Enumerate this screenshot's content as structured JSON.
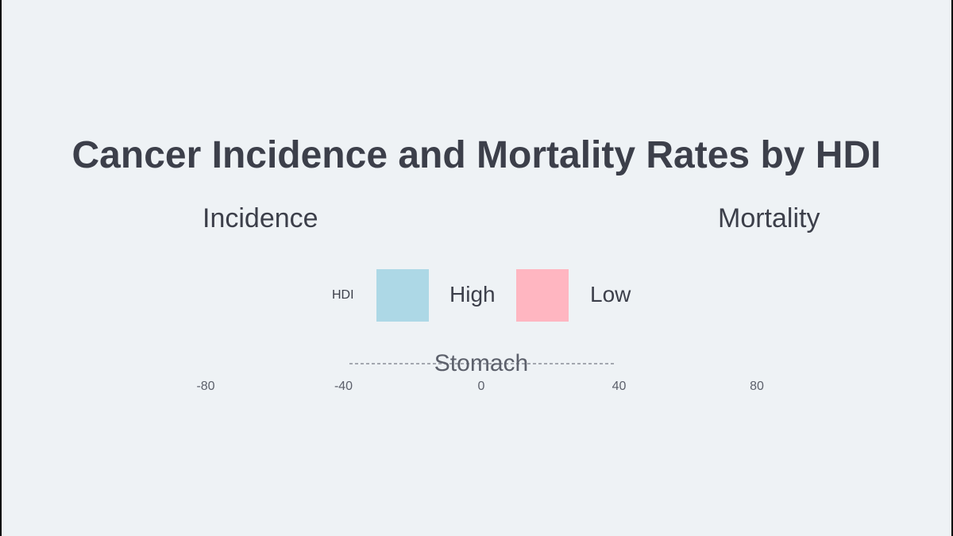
{
  "chart_data": {
    "type": "bar",
    "orientation": "horizontal-diverging",
    "title": "Cancer Incidence and Mortality Rates by HDI",
    "panels": [
      "Incidence",
      "Mortality"
    ],
    "legend": {
      "title": "HDI",
      "placement": "top-center",
      "items": [
        {
          "label": "High",
          "color": "#add8e6"
        },
        {
          "label": "Low",
          "color": "#ffb6c1"
        }
      ]
    },
    "categories": [
      "Stomach"
    ],
    "x_ticks": [
      "-80",
      "-40",
      "0",
      "40",
      "80"
    ],
    "xlim": [
      -80,
      80
    ],
    "grid": true
  }
}
